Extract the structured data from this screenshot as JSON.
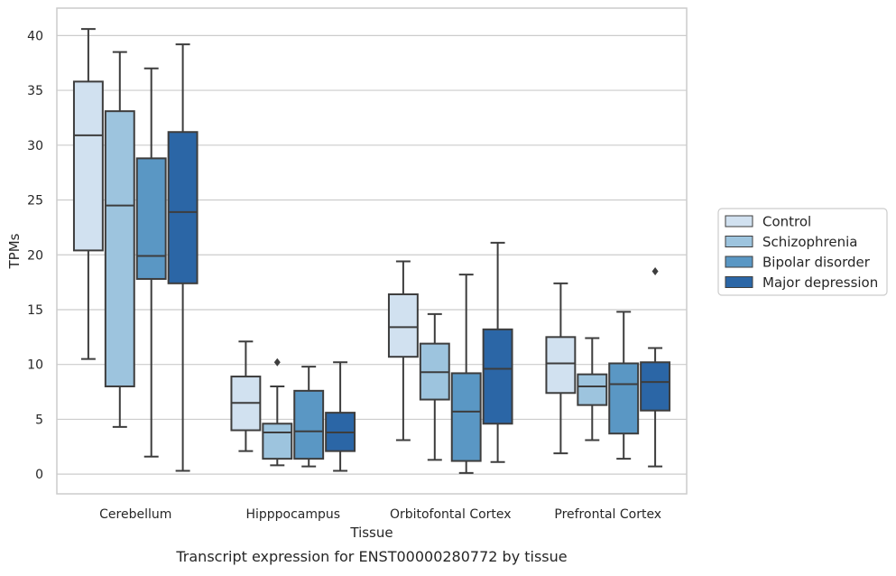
{
  "chart_data": {
    "type": "box",
    "title": "Transcript expression for ENST00000280772 by tissue",
    "xlabel": "Tissue",
    "ylabel": "TPMs",
    "ylim": [
      -1.8,
      42.5
    ],
    "yticks": [
      0,
      5,
      10,
      15,
      20,
      25,
      30,
      35,
      40
    ],
    "grid": "horizontal",
    "legend_position": "right",
    "categories": [
      "Cerebellum",
      "Hipppocampus",
      "Orbitofontal Cortex",
      "Prefrontal Cortex"
    ],
    "series": [
      {
        "name": "Control",
        "color": "#d1e1f0",
        "boxes": [
          {
            "whislo": 10.5,
            "q1": 20.4,
            "med": 30.9,
            "q3": 35.8,
            "whishi": 40.6,
            "fliers": []
          },
          {
            "whislo": 2.1,
            "q1": 4.0,
            "med": 6.5,
            "q3": 8.9,
            "whishi": 12.1,
            "fliers": []
          },
          {
            "whislo": 3.1,
            "q1": 10.7,
            "med": 13.4,
            "q3": 16.4,
            "whishi": 19.4,
            "fliers": []
          },
          {
            "whislo": 1.9,
            "q1": 7.4,
            "med": 10.1,
            "q3": 12.5,
            "whishi": 17.4,
            "fliers": []
          }
        ]
      },
      {
        "name": "Schizophrenia",
        "color": "#9dc4de",
        "boxes": [
          {
            "whislo": 4.3,
            "q1": 8.0,
            "med": 24.5,
            "q3": 33.1,
            "whishi": 38.5,
            "fliers": []
          },
          {
            "whislo": 0.8,
            "q1": 1.4,
            "med": 3.8,
            "q3": 4.6,
            "whishi": 8.0,
            "fliers": [
              10.2
            ]
          },
          {
            "whislo": 1.3,
            "q1": 6.8,
            "med": 9.3,
            "q3": 11.9,
            "whishi": 14.6,
            "fliers": []
          },
          {
            "whislo": 3.1,
            "q1": 6.3,
            "med": 8.0,
            "q3": 9.1,
            "whishi": 12.4,
            "fliers": []
          }
        ]
      },
      {
        "name": "Bipolar disorder",
        "color": "#5a97c4",
        "boxes": [
          {
            "whislo": 1.6,
            "q1": 17.8,
            "med": 19.9,
            "q3": 28.8,
            "whishi": 37.0,
            "fliers": []
          },
          {
            "whislo": 0.7,
            "q1": 1.4,
            "med": 3.9,
            "q3": 7.6,
            "whishi": 9.8,
            "fliers": []
          },
          {
            "whislo": 0.1,
            "q1": 1.2,
            "med": 5.7,
            "q3": 9.2,
            "whishi": 18.2,
            "fliers": []
          },
          {
            "whislo": 1.4,
            "q1": 3.7,
            "med": 8.2,
            "q3": 10.1,
            "whishi": 14.8,
            "fliers": []
          }
        ]
      },
      {
        "name": "Major depression",
        "color": "#2b66a6",
        "boxes": [
          {
            "whislo": 0.3,
            "q1": 17.4,
            "med": 23.9,
            "q3": 31.2,
            "whishi": 39.2,
            "fliers": []
          },
          {
            "whislo": 0.3,
            "q1": 2.1,
            "med": 3.8,
            "q3": 5.6,
            "whishi": 10.2,
            "fliers": []
          },
          {
            "whislo": 1.1,
            "q1": 4.6,
            "med": 9.6,
            "q3": 13.2,
            "whishi": 21.1,
            "fliers": []
          },
          {
            "whislo": 0.7,
            "q1": 5.8,
            "med": 8.4,
            "q3": 10.2,
            "whishi": 11.5,
            "fliers": [
              18.5
            ]
          }
        ]
      }
    ]
  }
}
